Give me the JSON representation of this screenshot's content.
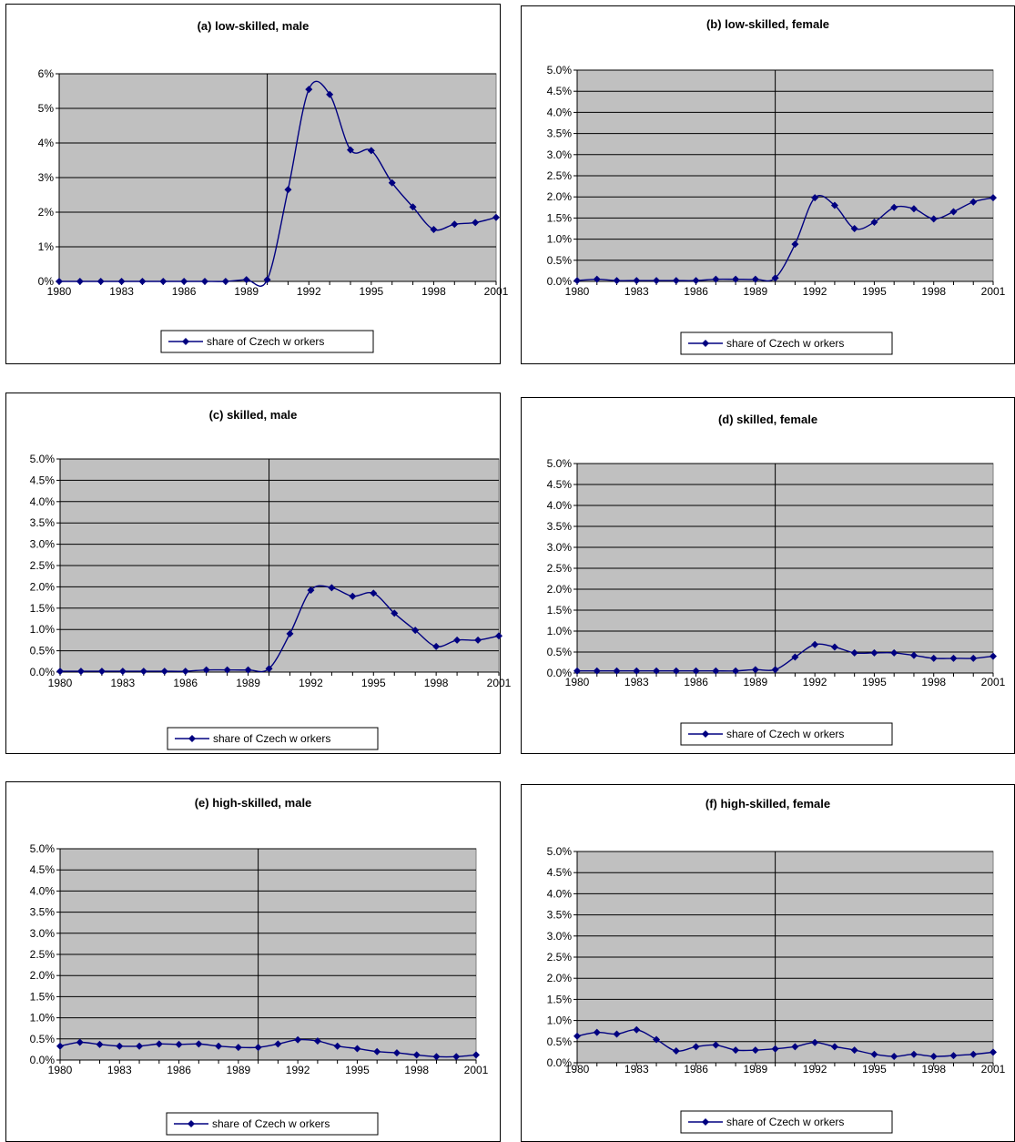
{
  "chart_data": [
    {
      "type": "line",
      "title": "(a) low-skilled, male",
      "x": [
        1980,
        1981,
        1982,
        1983,
        1984,
        1985,
        1986,
        1987,
        1988,
        1989,
        1990,
        1991,
        1992,
        1993,
        1994,
        1995,
        1996,
        1997,
        1998,
        1999,
        2000,
        2001
      ],
      "x_tick_labels": [
        "1980",
        "1983",
        "1986",
        "1989",
        "1992",
        "1995",
        "1998",
        "2001"
      ],
      "y_tick_labels": [
        "0%",
        "1%",
        "2%",
        "3%",
        "4%",
        "5%",
        "6%"
      ],
      "ylim": [
        0,
        6
      ],
      "series": [
        {
          "name": "share of Czech w orkers",
          "values": [
            0.0,
            0.0,
            0.0,
            0.0,
            0.0,
            0.0,
            0.0,
            0.0,
            0.0,
            0.05,
            0.05,
            2.65,
            5.55,
            5.4,
            3.8,
            3.78,
            2.85,
            2.15,
            1.5,
            1.65,
            1.7,
            1.85
          ]
        }
      ],
      "vline_x": 1990,
      "legend": "bottom",
      "grid": true,
      "background": "#c0c0c0",
      "line_color": "#000080"
    },
    {
      "type": "line",
      "title": "(b) low-skilled, female",
      "x": [
        1980,
        1981,
        1982,
        1983,
        1984,
        1985,
        1986,
        1987,
        1988,
        1989,
        1990,
        1991,
        1992,
        1993,
        1994,
        1995,
        1996,
        1997,
        1998,
        1999,
        2000,
        2001
      ],
      "x_tick_labels": [
        "1980",
        "1983",
        "1986",
        "1989",
        "1992",
        "1995",
        "1998",
        "2001"
      ],
      "y_tick_labels": [
        "0.0%",
        "0.5%",
        "1.0%",
        "1.5%",
        "2.0%",
        "2.5%",
        "3.0%",
        "3.5%",
        "4.0%",
        "4.5%",
        "5.0%"
      ],
      "ylim": [
        0,
        5
      ],
      "series": [
        {
          "name": "share of Czech w orkers",
          "values": [
            0.02,
            0.05,
            0.02,
            0.02,
            0.02,
            0.02,
            0.02,
            0.05,
            0.05,
            0.05,
            0.08,
            0.88,
            1.98,
            1.8,
            1.25,
            1.4,
            1.75,
            1.72,
            1.48,
            1.65,
            1.88,
            1.98
          ]
        }
      ],
      "vline_x": 1990,
      "legend": "bottom",
      "grid": true,
      "background": "#c0c0c0",
      "line_color": "#000080"
    },
    {
      "type": "line",
      "title": "(c) skilled, male",
      "x": [
        1980,
        1981,
        1982,
        1983,
        1984,
        1985,
        1986,
        1987,
        1988,
        1989,
        1990,
        1991,
        1992,
        1993,
        1994,
        1995,
        1996,
        1997,
        1998,
        1999,
        2000,
        2001
      ],
      "x_tick_labels": [
        "1980",
        "1983",
        "1986",
        "1989",
        "1992",
        "1995",
        "1998",
        "2001"
      ],
      "y_tick_labels": [
        "0.0%",
        "0.5%",
        "1.0%",
        "1.5%",
        "2.0%",
        "2.5%",
        "3.0%",
        "3.5%",
        "4.0%",
        "4.5%",
        "5.0%"
      ],
      "ylim": [
        0,
        5
      ],
      "series": [
        {
          "name": "share of Czech w orkers",
          "values": [
            0.02,
            0.02,
            0.02,
            0.02,
            0.02,
            0.02,
            0.02,
            0.05,
            0.05,
            0.05,
            0.08,
            0.9,
            1.92,
            1.98,
            1.78,
            1.85,
            1.38,
            0.98,
            0.6,
            0.75,
            0.75,
            0.85
          ]
        }
      ],
      "vline_x": 1990,
      "legend": "bottom",
      "grid": true,
      "background": "#c0c0c0",
      "line_color": "#000080"
    },
    {
      "type": "line",
      "title": "(d) skilled, female",
      "x": [
        1980,
        1981,
        1982,
        1983,
        1984,
        1985,
        1986,
        1987,
        1988,
        1989,
        1990,
        1991,
        1992,
        1993,
        1994,
        1995,
        1996,
        1997,
        1998,
        1999,
        2000,
        2001
      ],
      "x_tick_labels": [
        "1980",
        "1983",
        "1986",
        "1989",
        "1992",
        "1995",
        "1998",
        "2001"
      ],
      "y_tick_labels": [
        "0.0%",
        "0.5%",
        "1.0%",
        "1.5%",
        "2.0%",
        "2.5%",
        "3.0%",
        "3.5%",
        "4.0%",
        "4.5%",
        "5.0%"
      ],
      "ylim": [
        0,
        5
      ],
      "series": [
        {
          "name": "share of Czech w orkers",
          "values": [
            0.05,
            0.05,
            0.05,
            0.05,
            0.05,
            0.05,
            0.05,
            0.05,
            0.05,
            0.08,
            0.08,
            0.38,
            0.68,
            0.62,
            0.48,
            0.48,
            0.48,
            0.42,
            0.35,
            0.35,
            0.35,
            0.4
          ]
        }
      ],
      "vline_x": 1990,
      "legend": "bottom",
      "grid": true,
      "background": "#c0c0c0",
      "line_color": "#000080"
    },
    {
      "type": "line",
      "title": "(e) high-skilled, male",
      "x": [
        1980,
        1981,
        1982,
        1983,
        1984,
        1985,
        1986,
        1987,
        1988,
        1989,
        1990,
        1991,
        1992,
        1993,
        1994,
        1995,
        1996,
        1997,
        1998,
        1999,
        2000,
        2001
      ],
      "x_tick_labels": [
        "1980",
        "1983",
        "1986",
        "1989",
        "1992",
        "1995",
        "1998",
        "2001"
      ],
      "y_tick_labels": [
        "0.0%",
        "0.5%",
        "1.0%",
        "1.5%",
        "2.0%",
        "2.5%",
        "3.0%",
        "3.5%",
        "4.0%",
        "4.5%",
        "5.0%"
      ],
      "ylim": [
        0,
        5
      ],
      "series": [
        {
          "name": "share of Czech w orkers",
          "values": [
            0.33,
            0.42,
            0.37,
            0.33,
            0.33,
            0.38,
            0.37,
            0.38,
            0.33,
            0.3,
            0.3,
            0.38,
            0.48,
            0.45,
            0.33,
            0.27,
            0.2,
            0.17,
            0.12,
            0.08,
            0.08,
            0.12
          ]
        }
      ],
      "vline_x": 1990,
      "legend": "bottom",
      "grid": true,
      "background": "#c0c0c0",
      "line_color": "#000080"
    },
    {
      "type": "line",
      "title": "(f) high-skilled, female",
      "x": [
        1980,
        1981,
        1982,
        1983,
        1984,
        1985,
        1986,
        1987,
        1988,
        1989,
        1990,
        1991,
        1992,
        1993,
        1994,
        1995,
        1996,
        1997,
        1998,
        1999,
        2000,
        2001
      ],
      "x_tick_labels": [
        "1980",
        "1983",
        "1986",
        "1989",
        "1992",
        "1995",
        "1998",
        "2001"
      ],
      "y_tick_labels": [
        "0.0%",
        "0.5%",
        "1.0%",
        "1.5%",
        "2.0%",
        "2.5%",
        "3.0%",
        "3.5%",
        "4.0%",
        "4.5%",
        "5.0%"
      ],
      "ylim": [
        0,
        5
      ],
      "series": [
        {
          "name": "share of Czech w orkers",
          "values": [
            0.63,
            0.72,
            0.68,
            0.78,
            0.55,
            0.28,
            0.38,
            0.42,
            0.3,
            0.3,
            0.33,
            0.38,
            0.48,
            0.38,
            0.3,
            0.2,
            0.15,
            0.2,
            0.15,
            0.17,
            0.2,
            0.25
          ]
        }
      ],
      "vline_x": 1990,
      "legend": "bottom",
      "grid": true,
      "background": "#c0c0c0",
      "line_color": "#000080"
    }
  ]
}
